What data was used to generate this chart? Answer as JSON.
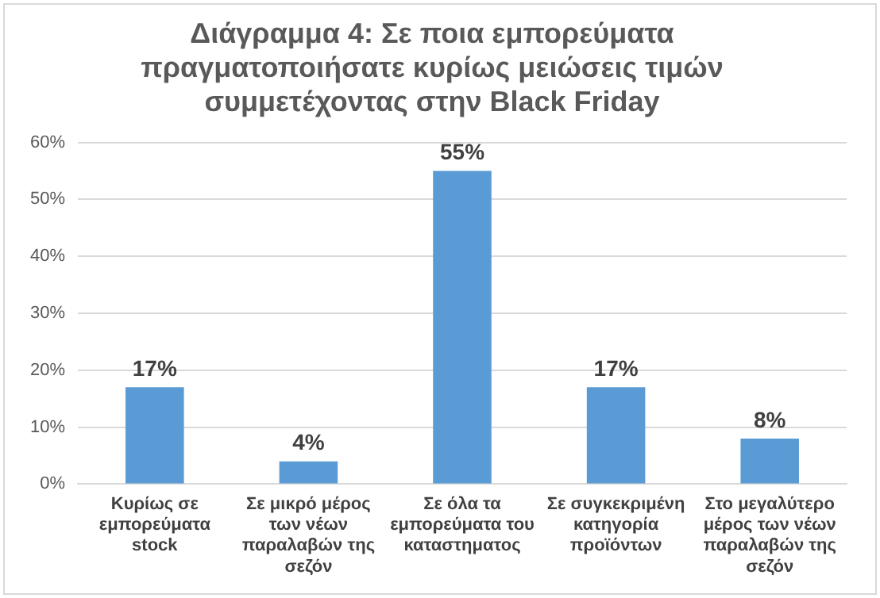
{
  "chart_data": {
    "type": "bar",
    "title": "Διάγραμμα 4: Σε ποια εμπορεύματα πραγματοποιήσατε κυρίως μειώσεις τιμών συμμετέχοντας στην Black Friday",
    "categories": [
      "Κυρίως σε εμπορεύματα stock",
      "Σε μικρό μέρος των νέων παραλαβών της σεζόν",
      "Σε όλα τα εμπορεύματα του καταστηματος",
      "Σε συγκεκριμένη κατηγορία προϊόντων",
      "Στο μεγαλύτερο μέρος των νέων παραλαβών της σεζόν"
    ],
    "values": [
      17,
      4,
      55,
      17,
      8
    ],
    "value_labels": [
      "17%",
      "4%",
      "55%",
      "17%",
      "8%"
    ],
    "color": "#5b9bd5",
    "ylim": [
      0,
      60
    ],
    "yticks": [
      {
        "value": 0,
        "label": "0%"
      },
      {
        "value": 10,
        "label": "10%"
      },
      {
        "value": 20,
        "label": "20%"
      },
      {
        "value": 30,
        "label": "30%"
      },
      {
        "value": 40,
        "label": "40%"
      },
      {
        "value": 50,
        "label": "50%"
      },
      {
        "value": 60,
        "label": "60%"
      }
    ],
    "grid": "y",
    "legend": false
  }
}
